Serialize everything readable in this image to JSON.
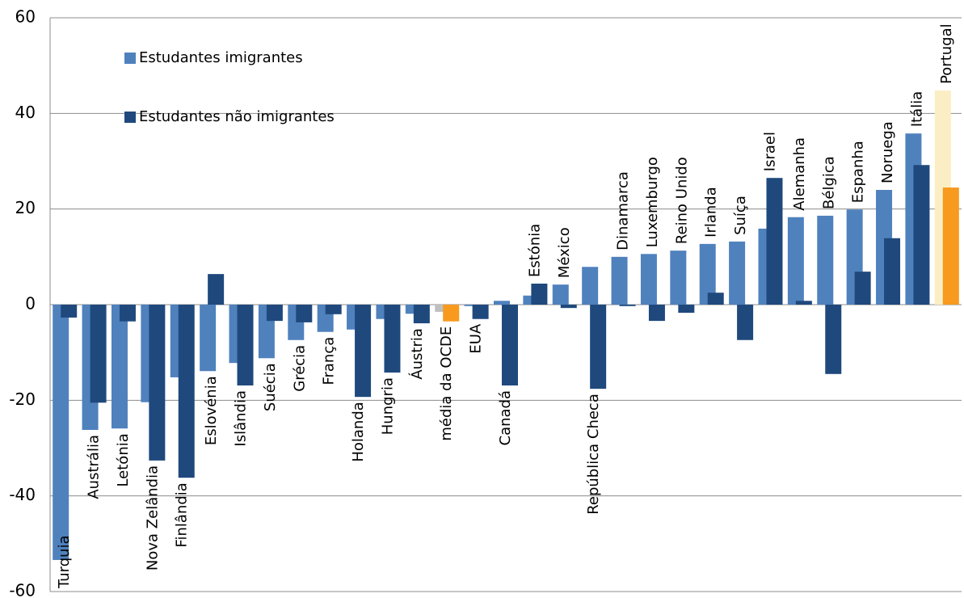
{
  "chart_data": {
    "type": "bar",
    "categories": [
      "Turquia",
      "Austrália",
      "Letónia",
      "Nova Zelândia",
      "Finlândia",
      "Eslovénia",
      "Islândia",
      "Suécia",
      "Grécia",
      "França",
      "Holanda",
      "Hungria",
      "Áustria",
      "média da OCDE",
      "EUA",
      "Canadá",
      "Estónia",
      "México",
      "República Checa",
      "Dinamarca",
      "Luxemburgo",
      "Reino Unido",
      "Irlanda",
      "Suíça",
      "Israel",
      "Alemanha",
      "Bélgica",
      "Espanha",
      "Noruega",
      "Itália",
      "Portugal"
    ],
    "series": [
      {
        "name": "Estudantes imigrantes",
        "color": "#4f81bd",
        "colors": [
          "#4f81bd",
          "#4f81bd",
          "#4f81bd",
          "#4f81bd",
          "#4f81bd",
          "#4f81bd",
          "#4f81bd",
          "#4f81bd",
          "#4f81bd",
          "#4f81bd",
          "#4f81bd",
          "#4f81bd",
          "#4f81bd",
          "#bfbfbf",
          "#4f81bd",
          "#4f81bd",
          "#4f81bd",
          "#4f81bd",
          "#4f81bd",
          "#4f81bd",
          "#4f81bd",
          "#4f81bd",
          "#4f81bd",
          "#4f81bd",
          "#4f81bd",
          "#4f81bd",
          "#4f81bd",
          "#4f81bd",
          "#4f81bd",
          "#4f81bd",
          "#fbeec4"
        ],
        "values": [
          -53.4,
          -26.2,
          -25.9,
          -20.4,
          -15.2,
          -13.9,
          -12.2,
          -11.2,
          -7.4,
          -5.7,
          -5.2,
          -3.0,
          -1.9,
          -1.5,
          -0.3,
          0.8,
          1.9,
          4.2,
          7.9,
          10.0,
          10.6,
          11.3,
          12.7,
          13.2,
          15.9,
          18.3,
          18.6,
          19.9,
          24.0,
          35.8,
          44.8
        ]
      },
      {
        "name": "Estudantes não imigrantes",
        "color": "#1f497d",
        "colors": [
          "#1f497d",
          "#1f497d",
          "#1f497d",
          "#1f497d",
          "#1f497d",
          "#1f497d",
          "#1f497d",
          "#1f497d",
          "#1f497d",
          "#1f497d",
          "#1f497d",
          "#1f497d",
          "#1f497d",
          "#f79a1e",
          "#1f497d",
          "#1f497d",
          "#1f497d",
          "#1f497d",
          "#1f497d",
          "#1f497d",
          "#1f497d",
          "#1f497d",
          "#1f497d",
          "#1f497d",
          "#1f497d",
          "#1f497d",
          "#1f497d",
          "#1f497d",
          "#1f497d",
          "#1f497d",
          "#f79a1e"
        ],
        "values": [
          -2.7,
          -20.5,
          -3.5,
          -32.6,
          -36.2,
          6.4,
          -16.9,
          -3.4,
          -3.7,
          -2.0,
          -19.3,
          -14.2,
          -3.9,
          -3.5,
          -3.0,
          -16.9,
          4.4,
          -0.7,
          -17.6,
          -0.3,
          -3.4,
          -1.7,
          2.5,
          -7.4,
          26.5,
          0.8,
          -14.5,
          6.9,
          13.9,
          29.2,
          24.5
        ]
      }
    ],
    "ylim": [
      -60,
      60
    ],
    "yticks": [
      -60,
      -40,
      -20,
      0,
      20,
      40,
      60
    ],
    "grid": true
  }
}
